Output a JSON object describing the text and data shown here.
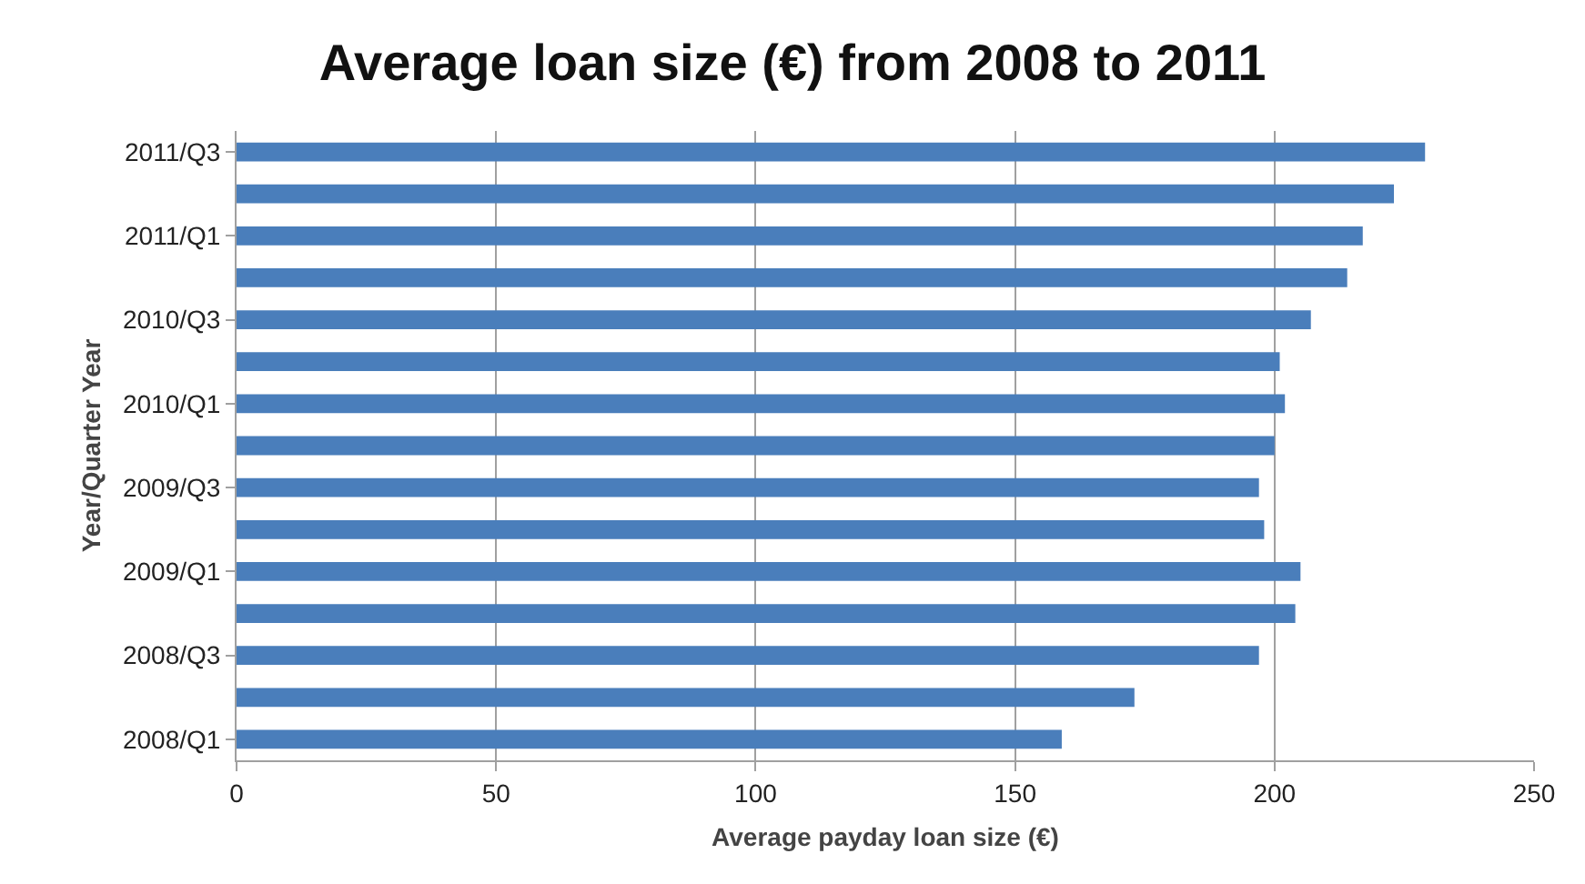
{
  "chart_data": {
    "type": "bar",
    "orientation": "horizontal",
    "title": "Average loan size (€) from 2008 to 2011",
    "xlabel": "Average payday loan size (€)",
    "ylabel": "Year/Quarter Year",
    "categories": [
      "2011/Q3",
      null,
      "2011/Q1",
      null,
      "2010/Q3",
      null,
      "2010/Q1",
      null,
      "2009/Q3",
      null,
      "2009/Q1",
      null,
      "2008/Q3",
      null,
      "2008/Q1"
    ],
    "values": [
      229,
      223,
      217,
      214,
      207,
      201,
      202,
      200,
      197,
      198,
      205,
      204,
      197,
      173,
      159
    ],
    "color": "#4a7ebb",
    "xlim": [
      0,
      250
    ],
    "xticks": [
      0,
      50,
      100,
      150,
      200,
      250
    ],
    "grid": "x",
    "legend": false
  }
}
